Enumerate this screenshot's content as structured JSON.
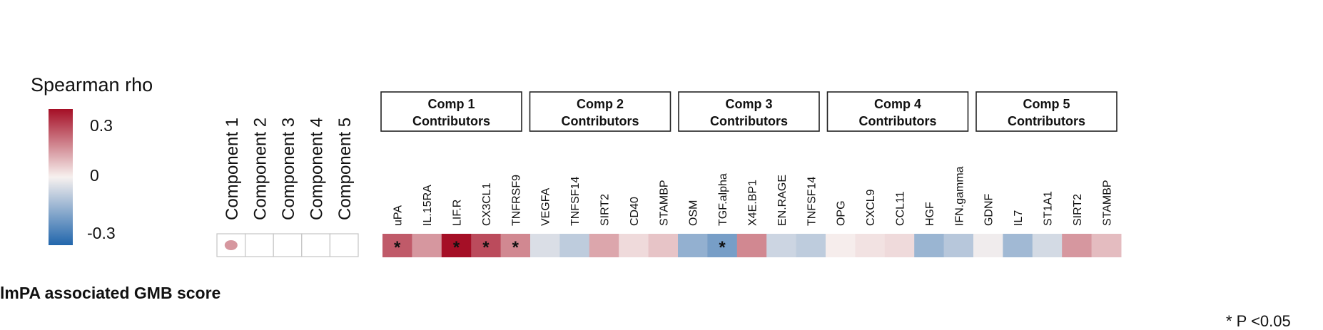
{
  "legend": {
    "title": "Spearman rho",
    "ticks": [
      "0.3",
      "0",
      "-0.3"
    ],
    "colors": {
      "high": "#a50f26",
      "mid": "#f7f1ef",
      "low": "#2166ac"
    }
  },
  "footnote": "* P <0.05",
  "chart_data": {
    "type": "heatmap",
    "row_label": "lmPA associated GMB score",
    "value_range": [
      -0.3,
      0.3
    ],
    "components": {
      "columns": [
        "Component 1",
        "Component 2",
        "Component 3",
        "Component 4",
        "Component 5"
      ],
      "values": [
        0.12,
        0,
        0,
        0,
        0
      ]
    },
    "groups": [
      {
        "title_line1": "Comp 1",
        "title_line2": "Contributors",
        "columns": [
          "uPA",
          "IL.15RA",
          "LIF.R",
          "CX3CL1",
          "TNFRSF9"
        ],
        "values": [
          0.2,
          0.12,
          0.3,
          0.22,
          0.14
        ],
        "significant": [
          true,
          false,
          true,
          true,
          true
        ]
      },
      {
        "title_line1": "Comp 2",
        "title_line2": "Contributors",
        "columns": [
          "VEGFA",
          "TNFSF14",
          "SIRT2",
          "CD40",
          "STAMBP"
        ],
        "values": [
          -0.04,
          -0.08,
          0.1,
          0.03,
          0.06
        ],
        "significant": [
          false,
          false,
          false,
          false,
          false
        ]
      },
      {
        "title_line1": "Comp 3",
        "title_line2": "Contributors",
        "columns": [
          "OSM",
          "TGF.alpha",
          "X4E.BP1",
          "EN.RAGE",
          "TNFSF14"
        ],
        "values": [
          -0.14,
          -0.18,
          0.14,
          -0.06,
          -0.08
        ],
        "significant": [
          false,
          true,
          false,
          false,
          false
        ]
      },
      {
        "title_line1": "Comp 4",
        "title_line2": "Contributors",
        "columns": [
          "OPG",
          "CXCL9",
          "CCL11",
          "HGF",
          "IFN.gamma"
        ],
        "values": [
          0.005,
          0.02,
          0.03,
          -0.13,
          -0.09
        ],
        "significant": [
          false,
          false,
          false,
          false,
          false
        ]
      },
      {
        "title_line1": "Comp 5",
        "title_line2": "Contributors",
        "columns": [
          "GDNF",
          "IL7",
          "ST1A1",
          "SIRT2",
          "STAMBP"
        ],
        "values": [
          -0.01,
          -0.12,
          -0.05,
          0.12,
          0.07
        ],
        "significant": [
          false,
          false,
          false,
          false,
          false
        ]
      }
    ]
  }
}
